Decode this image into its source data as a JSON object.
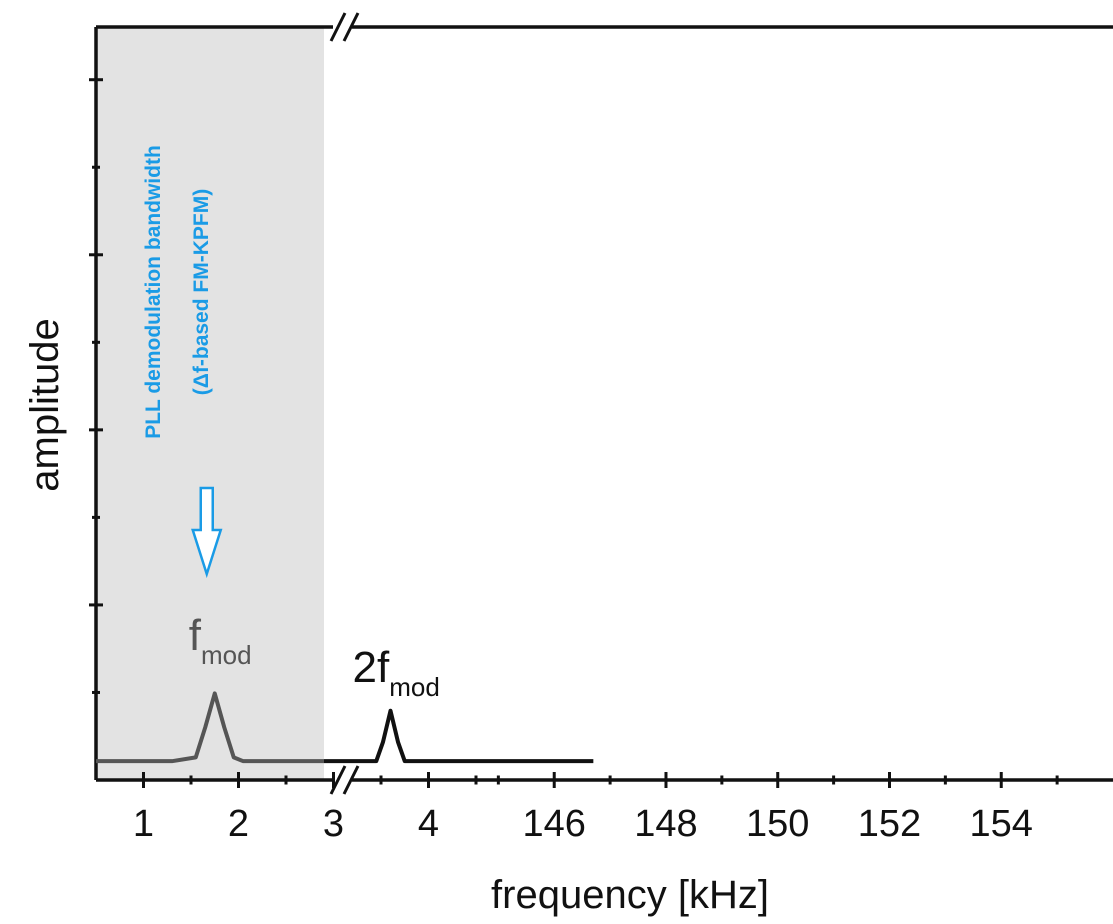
{
  "chart_data": {
    "type": "line",
    "xlabel": "frequency [kHz]",
    "ylabel": "amplitude",
    "x_axis": {
      "broken": true,
      "segments": [
        {
          "range": [
            0.5,
            4.5
          ],
          "ticks": [
            1,
            2,
            3,
            4
          ]
        },
        {
          "range": [
            144.6,
            156.0
          ],
          "ticks": [
            146,
            148,
            150,
            152,
            154
          ]
        }
      ]
    },
    "y_axis": {
      "range": [
        0,
        1
      ],
      "tick_labels_shown": false
    },
    "shaded_band": {
      "x_range": [
        0.5,
        2.9
      ],
      "color": "#e3e3e3",
      "label_line1": "PLL demodulation bandwidth",
      "label_line2": "(Δf-based FM-KPFM)",
      "label_color": "#1a9be6"
    },
    "series": [
      {
        "color": "#555555",
        "x": [
          0.5,
          1.3,
          1.55,
          1.65,
          1.75,
          1.85,
          1.95,
          2.05,
          2.3,
          2.9
        ],
        "y": [
          0.025,
          0.025,
          0.03,
          0.07,
          0.115,
          0.07,
          0.03,
          0.025,
          0.025,
          0.025
        ]
      },
      {
        "color": "#111111",
        "x": [
          2.9,
          3.45,
          3.52,
          3.6,
          3.68,
          3.75,
          4.5,
          146.7
        ],
        "y": [
          0.025,
          0.025,
          0.05,
          0.092,
          0.05,
          0.025,
          0.025,
          0.025
        ]
      }
    ],
    "annotations": [
      {
        "base": "f",
        "sub": "mod",
        "x": 1.75,
        "color": "#555555"
      },
      {
        "base": "2f",
        "sub": "mod",
        "x": 3.6,
        "color": "#111111"
      }
    ],
    "grid": false,
    "legend": "none"
  }
}
